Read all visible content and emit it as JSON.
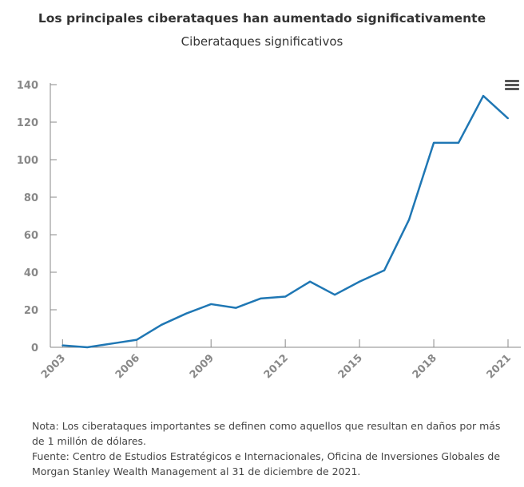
{
  "chart_data": {
    "type": "line",
    "title": "Los principales ciberataques han aumentado significativamente",
    "subtitle": "Ciberataques significativos",
    "xlabel": "",
    "ylabel": "",
    "x": [
      2003,
      2004,
      2005,
      2006,
      2007,
      2008,
      2009,
      2010,
      2011,
      2012,
      2013,
      2014,
      2015,
      2016,
      2017,
      2018,
      2019,
      2020,
      2021
    ],
    "series": [
      {
        "values": [
          1,
          0,
          2,
          4,
          12,
          18,
          23,
          21,
          26,
          27,
          35,
          28,
          35,
          41,
          68,
          109,
          109,
          134,
          122
        ],
        "color": "#1f77b4"
      }
    ],
    "xticks": [
      "2003",
      "2006",
      "2009",
      "2012",
      "2015",
      "2018",
      "2021"
    ],
    "yticks": [
      "0",
      "20",
      "40",
      "60",
      "80",
      "100",
      "120",
      "140"
    ],
    "xlim": [
      2003,
      2021
    ],
    "ylim": [
      0,
      140
    ],
    "grid": false,
    "legend": "none"
  },
  "menu_icon": "hamburger-menu-icon",
  "notes": [
    "Nota: Los ciberataques importantes se definen como aquellos que resultan en daños por más de 1 millón de dólares.",
    "Fuente: Centro de Estudios Estratégicos e Internacionales, Oficina de Inversiones Globales de Morgan Stanley Wealth Management al 31 de diciembre de 2021."
  ]
}
